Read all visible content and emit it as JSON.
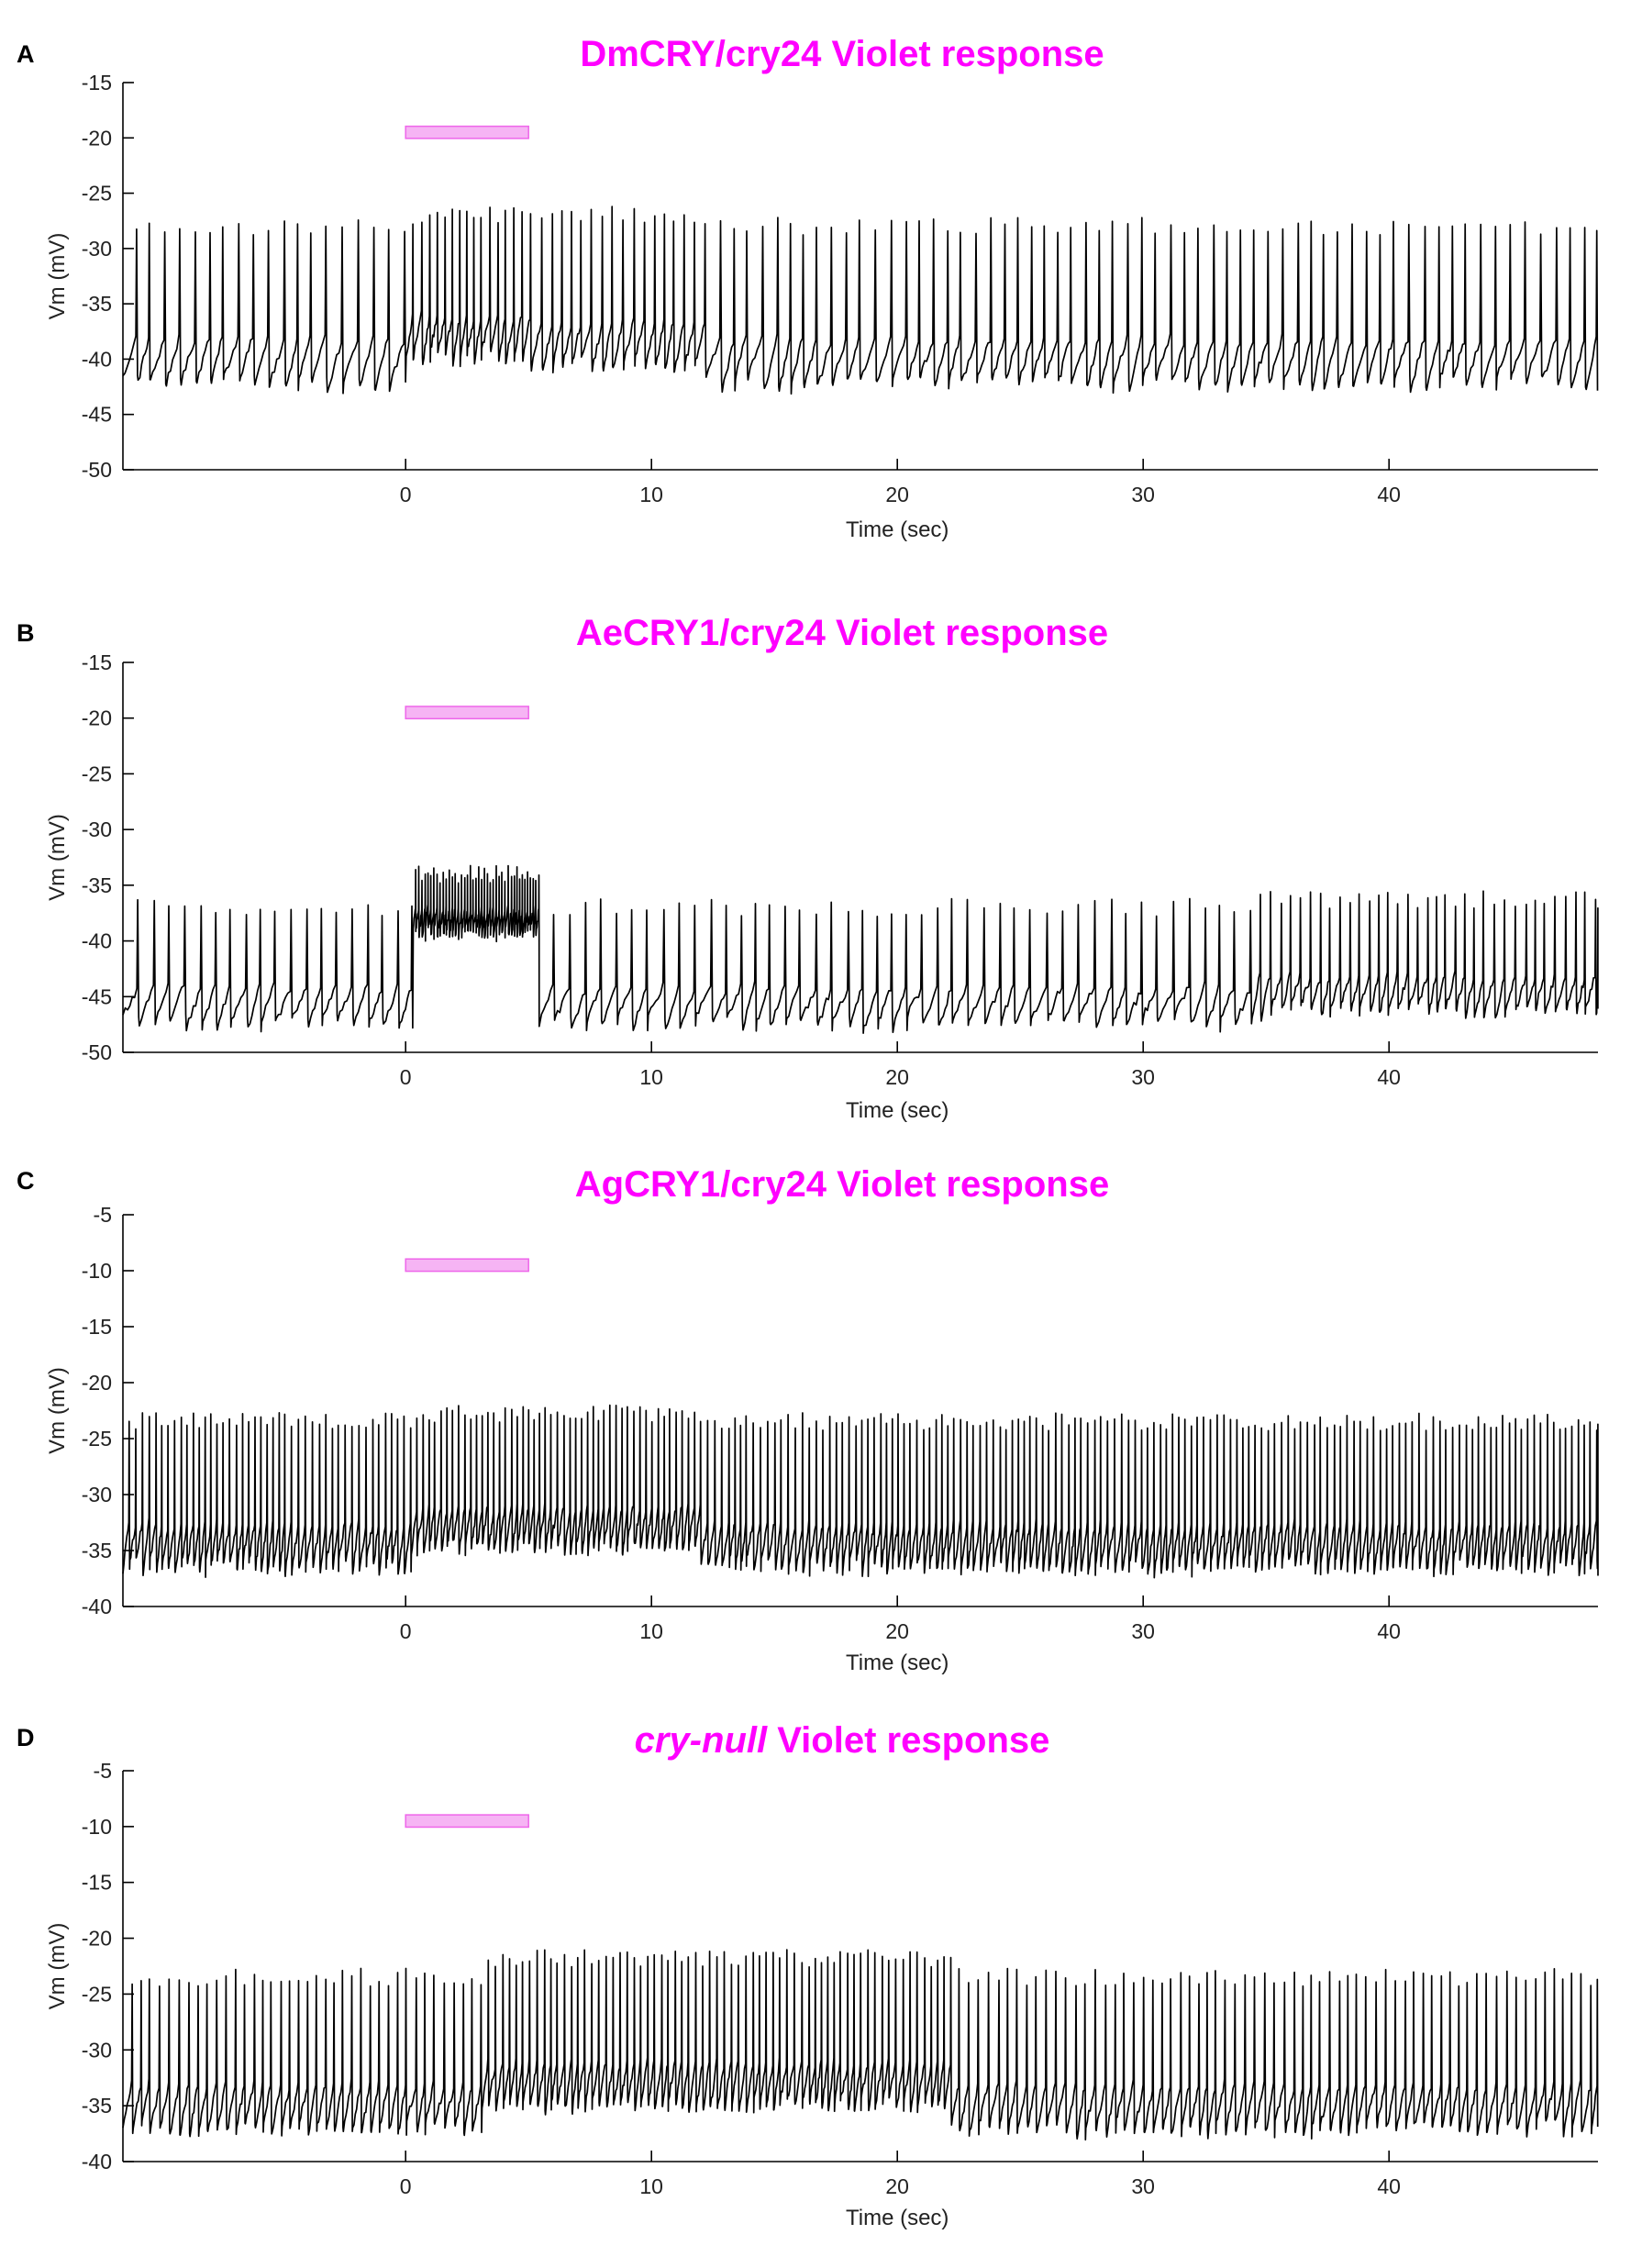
{
  "colors": {
    "title": "#ff00ff",
    "stim_fill": "#f6b4f4",
    "stim_stroke": "#ee66ea",
    "trace": "#000000",
    "axis": "#000000"
  },
  "chart_data": [
    {
      "type": "line",
      "panel": "A",
      "title_parts": [
        {
          "text": "DmCRY/cry24 Violet response",
          "italic": false
        }
      ],
      "xlabel": "Time (sec)",
      "ylabel": "Vm (mV)",
      "xlim": [
        -11.5,
        48.5
      ],
      "ylim": [
        -50,
        -15
      ],
      "xticks": [
        0,
        10,
        20,
        30,
        40
      ],
      "yticks": [
        -15,
        -20,
        -25,
        -30,
        -35,
        -40,
        -45,
        -50
      ],
      "stimulus": {
        "start": 0,
        "end": 5,
        "level": -19.5
      },
      "series": [
        {
          "baseline": -38.5,
          "spike_peak": -28,
          "spike_interval": 0.58,
          "segments": [
            {
              "start": 0,
              "end": 5,
              "baseline": -36.5,
              "spike_peak": -27,
              "spike_interval": 0.33
            },
            {
              "start": 5,
              "end": 12,
              "baseline": -37,
              "spike_peak": -27,
              "spike_interval": 0.42
            }
          ]
        }
      ]
    },
    {
      "type": "line",
      "panel": "B",
      "title_parts": [
        {
          "text": "AeCRY1/cry24 Violet response",
          "italic": false
        }
      ],
      "xlabel": "Time (sec)",
      "ylabel": "Vm (mV)",
      "xlim": [
        -11.5,
        48.5
      ],
      "ylim": [
        -50,
        -15
      ],
      "xticks": [
        0,
        10,
        20,
        30,
        40
      ],
      "yticks": [
        -15,
        -20,
        -25,
        -30,
        -35,
        -40,
        -45,
        -50
      ],
      "stimulus": {
        "start": 0,
        "end": 5,
        "level": -19.5
      },
      "series": [
        {
          "baseline": -44.5,
          "spike_peak": -37,
          "spike_interval": 0.62,
          "segments": [
            {
              "start": 0,
              "end": 5.4,
              "baseline": -37.5,
              "spike_peak": -34,
              "spike_interval": 0.12
            },
            {
              "start": 34,
              "end": 48.5,
              "baseline": -43.5,
              "spike_peak": -36.3,
              "spike_interval": 0.4
            }
          ]
        }
      ]
    },
    {
      "type": "line",
      "panel": "C",
      "title_parts": [
        {
          "text": "AgCRY1/cry24 Violet response",
          "italic": false
        }
      ],
      "xlabel": "Time (sec)",
      "ylabel": "Vm (mV)",
      "xlim": [
        -11.5,
        48.5
      ],
      "ylim": [
        -40,
        -5
      ],
      "xticks": [
        0,
        10,
        20,
        30,
        40
      ],
      "yticks": [
        -5,
        -10,
        -15,
        -20,
        -25,
        -30,
        -35,
        -40
      ],
      "stimulus": {
        "start": 0,
        "end": 5,
        "level": -9.5
      },
      "series": [
        {
          "baseline": -33,
          "spike_peak": -23.5,
          "spike_interval": 0.26,
          "segments": [
            {
              "start": 0,
              "end": 12,
              "baseline": -31.5,
              "spike_peak": -22.8,
              "spike_interval": 0.24
            }
          ]
        }
      ]
    },
    {
      "type": "line",
      "panel": "D",
      "title_parts": [
        {
          "text": "cry-null",
          "italic": true
        },
        {
          "text": " Violet response",
          "italic": false
        }
      ],
      "xlabel": "Time (sec)",
      "ylabel": "Vm (mV)",
      "xlim": [
        -11.5,
        48.5
      ],
      "ylim": [
        -40,
        -5
      ],
      "xticks": [
        0,
        10,
        20,
        30,
        40
      ],
      "yticks": [
        -5,
        -10,
        -15,
        -20,
        -25,
        -30,
        -35,
        -40
      ],
      "stimulus": {
        "start": 0,
        "end": 5,
        "level": -9.5
      },
      "series": [
        {
          "baseline": -33.5,
          "spike_peak": -23.5,
          "spike_interval": 0.38,
          "segments": [
            {
              "start": 3,
              "end": 22,
              "baseline": -31.5,
              "spike_peak": -21.8,
              "spike_interval": 0.28
            }
          ]
        }
      ]
    }
  ]
}
